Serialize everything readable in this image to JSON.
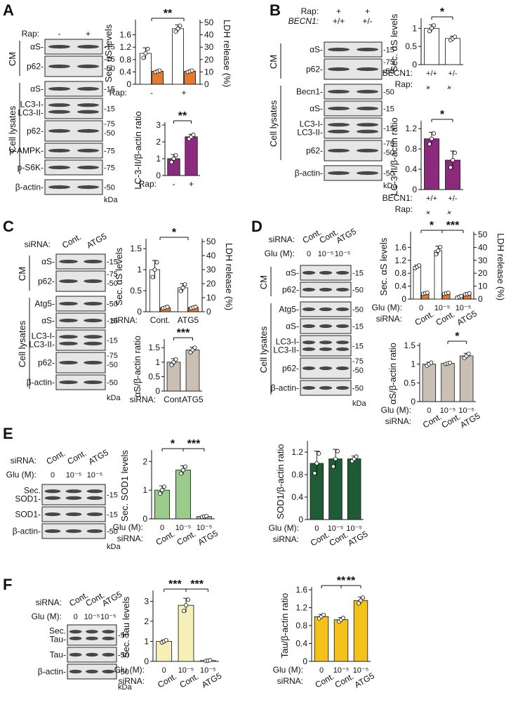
{
  "panel_letters": [
    "A",
    "B",
    "C",
    "D",
    "E",
    "F"
  ],
  "blots": {
    "A": {
      "cond_label": "Rap:",
      "conds": [
        "-",
        "+"
      ],
      "groups": [
        {
          "label": "CM",
          "rows": [
            {
              "name": "αS-",
              "marks": [
                "-15"
              ]
            },
            {
              "name": "p62-",
              "marks": [
                "-75",
                "-50"
              ]
            }
          ]
        },
        {
          "label": "Cell lysates",
          "rows": [
            {
              "name": "αS-",
              "marks": [
                "-15"
              ]
            },
            {
              "name": "LC3-I-\nLC3-II-",
              "marks": [
                "-15"
              ]
            },
            {
              "name": "p62-",
              "marks": [
                "-75",
                "-50"
              ]
            },
            {
              "name": "p-AMPK-",
              "marks": [
                "-75"
              ]
            },
            {
              "name": "p-S6K-",
              "marks": [
                "-75"
              ]
            }
          ]
        }
      ],
      "last_row": {
        "name": "β-actin-",
        "marks": [
          "-50"
        ]
      },
      "kda": "kDa"
    },
    "B": {
      "cond_label": "Rap:",
      "conds": [
        "+",
        "+"
      ],
      "geno_label": "BECN1:",
      "genos": [
        "+/+",
        "+/-"
      ],
      "groups": [
        {
          "label": "CM",
          "rows": [
            {
              "name": "αS-",
              "marks": [
                "-15"
              ]
            },
            {
              "name": "p62-",
              "marks": [
                "-75",
                "-50"
              ]
            }
          ]
        },
        {
          "label": "Cell lysates",
          "rows": [
            {
              "name": "Becn1-",
              "marks": [
                "-50"
              ]
            },
            {
              "name": "αS-",
              "marks": [
                "-15"
              ]
            },
            {
              "name": "LC3-I-\nLC3-II-",
              "marks": [
                "-15"
              ]
            },
            {
              "name": "p62-",
              "marks": [
                "-75",
                "-50"
              ]
            }
          ]
        }
      ],
      "last_row": {
        "name": "β-actin-",
        "marks": [
          "-50"
        ]
      },
      "kda": "kDa"
    },
    "C": {
      "cond_label": "siRNA:",
      "conds": [
        "Cont.",
        "ATG5"
      ],
      "groups": [
        {
          "label": "CM",
          "rows": [
            {
              "name": "αS-",
              "marks": [
                "-15"
              ]
            },
            {
              "name": "p62-",
              "marks": [
                "-75",
                "-50"
              ]
            }
          ]
        },
        {
          "label": "Cell lysates",
          "rows": [
            {
              "name": "Atg5-",
              "marks": [
                "-50"
              ]
            },
            {
              "name": "αS-",
              "marks": [
                "-15"
              ]
            },
            {
              "name": "LC3-I-\nLC3-II-",
              "marks": [
                "-15"
              ]
            },
            {
              "name": "p62-",
              "marks": [
                "-75",
                "-50"
              ]
            },
            {
              "name": "β-actin-",
              "marks": [
                "-50"
              ]
            }
          ]
        }
      ],
      "kda": "kDa"
    },
    "D": {
      "cond_label": "siRNA:",
      "conds": [
        "Cont.",
        "Cont.",
        "ATG5"
      ],
      "glu_label": "Glu (M):",
      "glus": [
        "0",
        "10⁻⁵",
        "10⁻⁵"
      ],
      "groups": [
        {
          "label": "CM",
          "rows": [
            {
              "name": "αS-",
              "marks": [
                "-15"
              ]
            },
            {
              "name": "p62-",
              "marks": [
                "-50"
              ]
            }
          ]
        },
        {
          "label": "Cell lysates",
          "rows": [
            {
              "name": "Atg5-",
              "marks": [
                "-50"
              ]
            },
            {
              "name": "αS-",
              "marks": [
                "-15"
              ]
            },
            {
              "name": "LC3-I-\nLC3-II-",
              "marks": [
                "-15"
              ]
            },
            {
              "name": "p62-",
              "marks": [
                "-75",
                "-50"
              ]
            },
            {
              "name": "β-actin-",
              "marks": [
                "-50"
              ]
            }
          ]
        }
      ],
      "kda": "kDa"
    },
    "E": {
      "cond_label": "siRNA:",
      "conds": [
        "Cont.",
        "Cont.",
        "ATG5"
      ],
      "glu_label": "Glu (M):",
      "glus": [
        "0",
        "10⁻⁵",
        "10⁻⁵"
      ],
      "rows": [
        {
          "name": "Sec.\nSOD1-",
          "marks": [
            "-15"
          ]
        },
        {
          "name": "SOD1-",
          "marks": [
            "-15"
          ]
        },
        {
          "name": "β-actin-",
          "marks": [
            "-50"
          ]
        }
      ],
      "kda": "kDa"
    },
    "F": {
      "cond_label": "siRNA:",
      "conds": [
        "Cont.",
        "Cont.",
        "ATG5"
      ],
      "glu_label": "Glu (M):",
      "glus": [
        "0",
        "10⁻⁵",
        "10⁻⁵"
      ],
      "rows": [
        {
          "name": "Sec.\nTau-",
          "marks": [
            "-50"
          ]
        },
        {
          "name": "Tau-",
          "marks": [
            "-50"
          ]
        },
        {
          "name": "β-actin-",
          "marks": [
            "-50"
          ]
        }
      ],
      "kda": "kDa"
    }
  },
  "chart_data": [
    {
      "id": "A1",
      "type": "bar",
      "ylabel": "Sec. αS levels",
      "y2label": "LDH release (%)",
      "ylim": [
        0,
        2.0
      ],
      "yticks": [
        0,
        0.4,
        0.8,
        1.2,
        1.6
      ],
      "y2ticks": [
        0,
        10,
        20,
        30,
        40,
        50
      ],
      "cat_label": "Rap:",
      "categories": [
        "-",
        "+"
      ],
      "series": [
        {
          "color": "#ffffff",
          "values": [
            1.0,
            1.8
          ],
          "errors": [
            0.18,
            0.12
          ]
        },
        {
          "color": "#e8792b",
          "values": [
            0.42,
            0.42
          ],
          "errors": [
            0.03,
            0.03
          ]
        }
      ],
      "sig": [
        {
          "from": 0,
          "to": 1,
          "label": "**"
        }
      ]
    },
    {
      "id": "A2",
      "type": "bar",
      "ylabel": "LC-3-II/β-actin ratio",
      "ylim": [
        0,
        3.0
      ],
      "yticks": [
        0,
        1.0,
        2.0,
        3.0
      ],
      "cat_label": "Rap:",
      "categories": [
        "-",
        "+"
      ],
      "series": [
        {
          "color": "#8c2a7e",
          "values": [
            1.0,
            2.3
          ],
          "errors": [
            0.25,
            0.15
          ]
        }
      ],
      "sig": [
        {
          "from": 0,
          "to": 1,
          "label": "**"
        }
      ]
    },
    {
      "id": "B1",
      "type": "bar",
      "ylabel": "Sec. αS levels",
      "ylim": [
        0,
        1.2
      ],
      "yticks": [
        0,
        0.5,
        1.0
      ],
      "cat_label": "Rap:",
      "categories": [
        "+",
        "+"
      ],
      "cat2_label": "BECN1:",
      "categories2": [
        "+/+",
        "+/-"
      ],
      "series": [
        {
          "color": "#ffffff",
          "values": [
            1.0,
            0.72
          ],
          "errors": [
            0.1,
            0.06
          ]
        }
      ],
      "sig": [
        {
          "from": 0,
          "to": 1,
          "label": "*"
        }
      ]
    },
    {
      "id": "B2",
      "type": "bar",
      "ylabel": "LC-3-II/β-actin ratio",
      "ylim": [
        0,
        1.3
      ],
      "yticks": [
        0,
        0.4,
        0.8,
        1.2
      ],
      "cat_label": "Rap:",
      "categories": [
        "+",
        "+"
      ],
      "cat2_label": "BECN1:",
      "categories2": [
        "+/+",
        "+/-"
      ],
      "series": [
        {
          "color": "#8c2a7e",
          "values": [
            1.0,
            0.58
          ],
          "errors": [
            0.13,
            0.18
          ]
        }
      ],
      "sig": [
        {
          "from": 0,
          "to": 1,
          "label": "*"
        }
      ]
    },
    {
      "id": "C1",
      "type": "bar",
      "ylabel": "Sec. αS levels",
      "y2label": "LDH release (%)",
      "ylim": [
        0,
        1.67
      ],
      "yticks": [
        0,
        0.5,
        1.0,
        1.5
      ],
      "y2ticks": [
        0,
        10,
        20,
        30,
        40,
        50
      ],
      "cat_label": "siRNA:",
      "categories": [
        "Cont.",
        "ATG5"
      ],
      "series": [
        {
          "color": "#ffffff",
          "values": [
            1.0,
            0.57
          ],
          "errors": [
            0.22,
            0.1
          ]
        },
        {
          "color": "#e8792b",
          "values": [
            0.1,
            0.1
          ],
          "errors": [
            0.02,
            0.02
          ]
        }
      ],
      "sig": [
        {
          "from": 0,
          "to": 1,
          "label": "*"
        }
      ]
    },
    {
      "id": "C2",
      "type": "bar",
      "ylabel": "αS/β-actin ratio",
      "ylim": [
        0,
        1.7
      ],
      "yticks": [
        0,
        0.5,
        1.0,
        1.5
      ],
      "cat_label": "siRNA:",
      "categories": [
        "Cont.",
        "ATG5"
      ],
      "series": [
        {
          "color": "#c9bfb5",
          "values": [
            1.0,
            1.42
          ],
          "errors": [
            0.12,
            0.1
          ]
        }
      ],
      "sig": [
        {
          "from": 0,
          "to": 1,
          "label": "***"
        }
      ]
    },
    {
      "id": "D1",
      "type": "bar",
      "ylabel": "Sec. αS levels",
      "y2label": "LDH release (%)",
      "ylim": [
        0,
        2.0
      ],
      "yticks": [
        0,
        0.4,
        0.8,
        1.2,
        1.6
      ],
      "y2ticks": [
        0,
        10,
        20,
        30,
        40,
        50
      ],
      "cat_label": "siRNA:",
      "categories": [
        "Cont.",
        "Cont.",
        "ATG5"
      ],
      "cat2_label": "Glu (M):",
      "categories2": [
        "0",
        "10⁻⁵",
        "10⁻⁵"
      ],
      "series": [
        {
          "color": "#ffffff",
          "values": [
            1.0,
            1.5,
            0.07
          ],
          "errors": [
            0.05,
            0.14,
            0.03
          ]
        },
        {
          "color": "#e8792b",
          "values": [
            0.18,
            0.18,
            0.16
          ],
          "errors": [
            0.02,
            0.02,
            0.02
          ]
        }
      ],
      "sig": [
        {
          "from": 0,
          "to": 1,
          "label": "*"
        },
        {
          "from": 1,
          "to": 2,
          "label": "***"
        }
      ]
    },
    {
      "id": "D2",
      "type": "bar",
      "ylabel": "αS/β-actin ratio",
      "ylim": [
        0,
        1.5
      ],
      "yticks": [
        0,
        0.5,
        1.0,
        1.5
      ],
      "cat_label": "siRNA:",
      "categories": [
        "Cont.",
        "Cont.",
        "ATG5"
      ],
      "cat2_label": "Glu (M):",
      "categories2": [
        "0",
        "10⁻⁵",
        "10⁻⁵"
      ],
      "series": [
        {
          "color": "#c9bfb5",
          "values": [
            1.0,
            1.02,
            1.22
          ],
          "errors": [
            0.05,
            0.02,
            0.07
          ]
        }
      ],
      "sig": [
        {
          "from": 1,
          "to": 2,
          "label": "*"
        }
      ]
    },
    {
      "id": "E1",
      "type": "bar",
      "ylabel": "Sec. SOD1 levels",
      "ylim": [
        0,
        2.3
      ],
      "yticks": [
        0,
        1.0,
        2.0
      ],
      "cat_label": "siRNA:",
      "categories": [
        "Cont.",
        "Cont.",
        "ATG5"
      ],
      "cat2_label": "Glu (M):",
      "categories2": [
        "0",
        "10⁻⁵",
        "10⁻⁵"
      ],
      "series": [
        {
          "color": "#9bcc8c",
          "values": [
            1.0,
            1.7,
            0.08
          ],
          "errors": [
            0.15,
            0.15,
            0.02
          ]
        }
      ],
      "sig": [
        {
          "from": 0,
          "to": 1,
          "label": "*"
        },
        {
          "from": 1,
          "to": 2,
          "label": "***"
        }
      ]
    },
    {
      "id": "E2",
      "type": "bar",
      "ylabel": "SOD1/β-actin ratio",
      "ylim": [
        0,
        1.35
      ],
      "yticks": [
        0,
        0.4,
        0.8,
        1.2
      ],
      "cat_label": "siRNA:",
      "categories": [
        "Cont.",
        "Cont.",
        "ATG5"
      ],
      "cat2_label": "Glu (M):",
      "categories2": [
        "0",
        "10⁻⁵",
        "10⁻⁵"
      ],
      "series": [
        {
          "color": "#1f5c36",
          "values": [
            1.0,
            1.08,
            1.08
          ],
          "errors": [
            0.22,
            0.17,
            0.05
          ]
        }
      ],
      "sig": []
    },
    {
      "id": "F1",
      "type": "bar",
      "ylabel": "Sec. Tau levels",
      "ylim": [
        0,
        3.4
      ],
      "yticks": [
        0,
        1.0,
        2.0,
        3.0
      ],
      "cat_label": "siRNA:",
      "categories": [
        "Cont.",
        "Cont.",
        "ATG5"
      ],
      "cat2_label": "Glu (M):",
      "categories2": [
        "0",
        "10⁻⁵",
        "10⁻⁵"
      ],
      "series": [
        {
          "color": "#f7efb8",
          "values": [
            1.0,
            2.8,
            0.04
          ],
          "errors": [
            0.07,
            0.35,
            0.02
          ]
        }
      ],
      "sig": [
        {
          "from": 0,
          "to": 1,
          "label": "***"
        },
        {
          "from": 1,
          "to": 2,
          "label": "***"
        }
      ]
    },
    {
      "id": "F2",
      "type": "bar",
      "ylabel": "Tau/β-actin ratio",
      "ylim": [
        0,
        1.6
      ],
      "yticks": [
        0,
        0.4,
        0.8,
        1.2,
        1.6
      ],
      "cat_label": "siRNA:",
      "categories": [
        "Cont.",
        "Cont.",
        "ATG5"
      ],
      "cat2_label": "Glu (M):",
      "categories2": [
        "0",
        "10⁻⁵",
        "10⁻⁵"
      ],
      "series": [
        {
          "color": "#f5c21a",
          "values": [
            1.0,
            0.93,
            1.36
          ],
          "errors": [
            0.05,
            0.05,
            0.08
          ]
        }
      ],
      "sig": [
        {
          "from": 0,
          "to": 2,
          "label": "**"
        },
        {
          "from": 1,
          "to": 2,
          "label": "**"
        }
      ]
    }
  ]
}
